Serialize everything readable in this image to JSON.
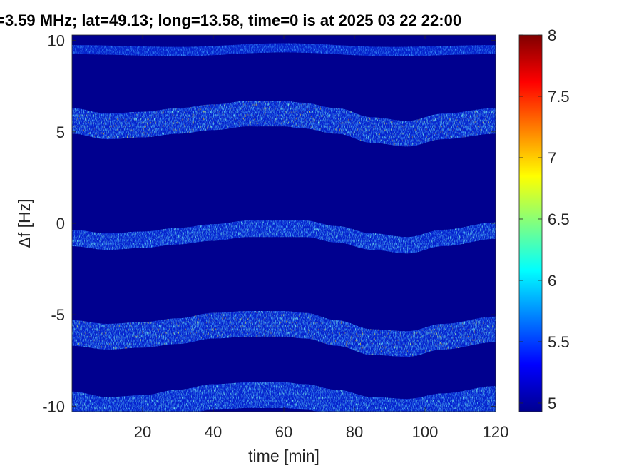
{
  "chart_data": {
    "type": "heatmap",
    "title": "=3.59 MHz;  lat=49.13; long=13.58, time=0 is at 2025 03 22 22:00",
    "xlabel": "time [min]",
    "ylabel": "Δf [Hz]",
    "xlim": [
      0,
      120
    ],
    "ylim": [
      -10.3,
      10.3
    ],
    "xticks": [
      20,
      40,
      60,
      80,
      100,
      120
    ],
    "yticks": [
      -10,
      -5,
      0,
      5,
      10
    ],
    "ytick_labels": [
      "-10",
      "-5",
      "0",
      "5",
      "10"
    ],
    "colorbar": {
      "range": [
        4.93,
        8
      ],
      "ticks": [
        5,
        5.5,
        6,
        6.5,
        7,
        7.5,
        8
      ],
      "tick_labels": [
        "5",
        "5.5",
        "6",
        "6.5",
        "7",
        "7.5",
        "8"
      ],
      "colormap": "jet"
    },
    "bands": [
      {
        "center_hz": 5.5,
        "values": [
          [
            0,
            5.6
          ],
          [
            10,
            5.3
          ],
          [
            20,
            5.4
          ],
          [
            30,
            5.6
          ],
          [
            40,
            5.8
          ],
          [
            50,
            6.0
          ],
          [
            60,
            6.0
          ],
          [
            65,
            5.9
          ],
          [
            75,
            5.6
          ],
          [
            85,
            5.1
          ],
          [
            95,
            4.9
          ],
          [
            105,
            5.3
          ],
          [
            120,
            5.6
          ]
        ]
      },
      {
        "center_hz": -0.8,
        "values": [
          [
            0,
            -0.8
          ],
          [
            10,
            -1.0
          ],
          [
            20,
            -0.9
          ],
          [
            30,
            -0.7
          ],
          [
            40,
            -0.5
          ],
          [
            50,
            -0.3
          ],
          [
            60,
            -0.3
          ],
          [
            66,
            -0.3
          ],
          [
            75,
            -0.6
          ],
          [
            85,
            -1.0
          ],
          [
            95,
            -1.2
          ],
          [
            105,
            -0.8
          ],
          [
            120,
            -0.4
          ]
        ]
      },
      {
        "center_hz": -6.0,
        "values": [
          [
            0,
            -6.0
          ],
          [
            10,
            -6.2
          ],
          [
            20,
            -6.1
          ],
          [
            30,
            -5.9
          ],
          [
            40,
            -5.6
          ],
          [
            50,
            -5.5
          ],
          [
            60,
            -5.5
          ],
          [
            66,
            -5.6
          ],
          [
            75,
            -6.0
          ],
          [
            85,
            -6.5
          ],
          [
            95,
            -6.6
          ],
          [
            105,
            -6.2
          ],
          [
            120,
            -5.8
          ]
        ]
      },
      {
        "center_hz": -9.9,
        "values": [
          [
            0,
            -9.9
          ],
          [
            10,
            -10.2
          ],
          [
            20,
            -10.1
          ],
          [
            30,
            -9.8
          ],
          [
            40,
            -9.5
          ],
          [
            50,
            -9.4
          ],
          [
            60,
            -9.4
          ],
          [
            66,
            -9.5
          ],
          [
            75,
            -9.8
          ],
          [
            85,
            -10.2
          ],
          [
            95,
            -10.3
          ],
          [
            105,
            -10.0
          ],
          [
            120,
            -9.6
          ]
        ]
      },
      {
        "center_hz": 9.5,
        "values": [
          [
            0,
            9.5
          ],
          [
            30,
            9.4
          ],
          [
            60,
            9.6
          ],
          [
            90,
            9.4
          ],
          [
            120,
            9.5
          ]
        ]
      }
    ]
  }
}
